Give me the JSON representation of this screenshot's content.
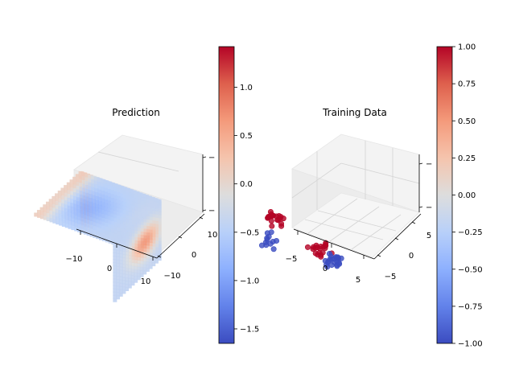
{
  "chart_data": [
    {
      "type": "scatter",
      "projection": "3d",
      "title": "Prediction",
      "x_ticks": [
        "−10",
        "0",
        "10"
      ],
      "y_ticks": [
        "−10",
        "0",
        "10"
      ],
      "z_ticks": [
        "−",
        "",
        "−"
      ],
      "xlim": [
        -12,
        12
      ],
      "ylim": [
        -12,
        12
      ],
      "colormap": "coolwarm",
      "colorbar": {
        "min": -1.65,
        "max": 1.42,
        "ticks": [
          "1.0",
          "0.5",
          "0.0",
          "−0.5",
          "−1.0",
          "−1.5"
        ],
        "tick_values": [
          1.0,
          0.5,
          0.0,
          -0.5,
          -1.0,
          -1.5
        ]
      }
    },
    {
      "type": "scatter",
      "projection": "3d",
      "title": "Training Data",
      "x_ticks": [
        "−5",
        "0",
        "5"
      ],
      "y_ticks": [
        "−5",
        "0",
        "5"
      ],
      "z_ticks": [
        "−",
        "−"
      ],
      "xlim": [
        -6.5,
        6.5
      ],
      "ylim": [
        -6.5,
        6.5
      ],
      "colormap": "coolwarm",
      "colorbar": {
        "min": -1.0,
        "max": 1.0,
        "ticks": [
          "1.00",
          "0.75",
          "0.50",
          "0.25",
          "0.00",
          "−0.25",
          "−0.50",
          "−0.75",
          "−1.00"
        ],
        "tick_values": [
          1.0,
          0.75,
          0.5,
          0.25,
          0.0,
          -0.25,
          -0.5,
          -0.75,
          -1.0
        ]
      },
      "clusters": [
        {
          "center": [
            -4.5,
            2.5,
            5.0
          ],
          "label": 1,
          "n": 22
        },
        {
          "center": [
            4.0,
            4.5,
            4.0
          ],
          "label": 1,
          "n": 20
        },
        {
          "center": [
            3.5,
            0.0,
            -2.5
          ],
          "label": -1,
          "n": 22
        },
        {
          "center": [
            -4.0,
            5.0,
            2.5
          ],
          "label": -1,
          "n": 12
        }
      ]
    }
  ]
}
